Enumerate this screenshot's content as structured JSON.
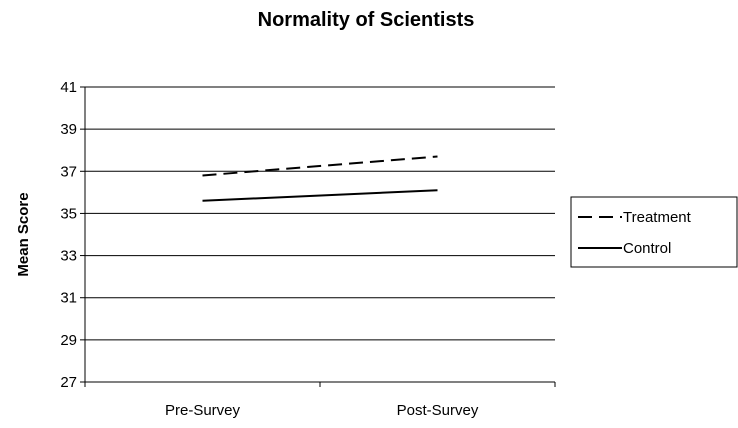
{
  "chart_data": {
    "type": "line",
    "title": "Normality of Scientists",
    "xlabel": "",
    "ylabel": "Mean Score",
    "categories": [
      "Pre-Survey",
      "Post-Survey"
    ],
    "ylim": [
      27,
      41
    ],
    "yticks": [
      27,
      29,
      31,
      33,
      35,
      37,
      39,
      41
    ],
    "grid": true,
    "legend_position": "right",
    "series": [
      {
        "name": "Treatment",
        "values": [
          36.8,
          37.7
        ],
        "style": "dashed",
        "color": "#000000"
      },
      {
        "name": "Control",
        "values": [
          35.6,
          36.1
        ],
        "style": "solid",
        "color": "#000000"
      }
    ]
  }
}
